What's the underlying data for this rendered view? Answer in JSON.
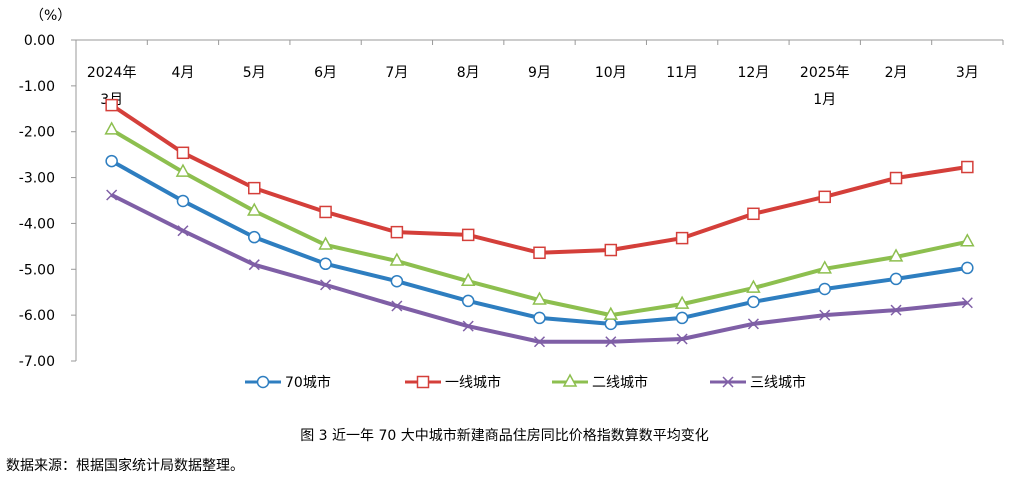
{
  "chart_data": {
    "type": "line",
    "title": "图 3  近一年 70 大中城市新建商品住房同比价格指数算数平均变化",
    "ylabel": "（%）",
    "xlabel": "",
    "ylim": [
      -7,
      0
    ],
    "yticks": [
      "0.00",
      "-1.00",
      "-2.00",
      "-3.00",
      "-4.00",
      "-5.00",
      "-6.00",
      "-7.00"
    ],
    "categories": [
      [
        "2024年",
        "3月"
      ],
      [
        "4月"
      ],
      [
        "5月"
      ],
      [
        "6月"
      ],
      [
        "7月"
      ],
      [
        "8月"
      ],
      [
        "9月"
      ],
      [
        "10月"
      ],
      [
        "11月"
      ],
      [
        "12月"
      ],
      [
        "2025年",
        "1月"
      ],
      [
        "2月"
      ],
      [
        "3月"
      ]
    ],
    "grid": false,
    "legend_position": "bottom",
    "series": [
      {
        "name": "70城市",
        "color": "#2E7EC0",
        "marker": "circle",
        "values": [
          -2.64,
          -3.51,
          -4.3,
          -4.88,
          -5.26,
          -5.69,
          -6.06,
          -6.19,
          -6.06,
          -5.71,
          -5.43,
          -5.21,
          -4.97
        ]
      },
      {
        "name": "一线城市",
        "color": "#D43F3A",
        "marker": "square",
        "values": [
          -1.42,
          -2.46,
          -3.23,
          -3.75,
          -4.19,
          -4.25,
          -4.64,
          -4.58,
          -4.32,
          -3.79,
          -3.42,
          -3.01,
          -2.77
        ]
      },
      {
        "name": "二线城市",
        "color": "#8DBF4F",
        "marker": "triangle",
        "values": [
          -1.96,
          -2.88,
          -3.73,
          -4.47,
          -4.82,
          -5.26,
          -5.67,
          -6.0,
          -5.76,
          -5.41,
          -4.99,
          -4.73,
          -4.4
        ]
      },
      {
        "name": "三线城市",
        "color": "#7F5FA6",
        "marker": "x",
        "values": [
          -3.38,
          -4.16,
          -4.9,
          -5.34,
          -5.8,
          -6.24,
          -6.58,
          -6.58,
          -6.52,
          -6.19,
          -6.0,
          -5.89,
          -5.73
        ]
      }
    ]
  },
  "caption": {
    "title": "图 3  近一年 70 大中城市新建商品住房同比价格指数算数平均变化",
    "source": "数据来源：根据国家统计局数据整理。"
  }
}
